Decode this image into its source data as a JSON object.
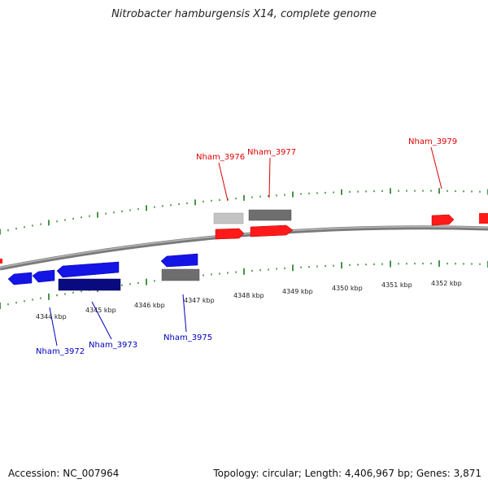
{
  "title": "Nitrobacter hamburgensis X14, complete genome",
  "footer": {
    "accession": "Accession: NC_007964",
    "summary": "Topology: circular; Length: 4,406,967 bp; Genes: 3,871"
  },
  "colors": {
    "backbone": "#8a8a8a",
    "tick": "#1a7a1a",
    "forward_cds": "#ff1a1a",
    "reverse_cds": "#1414e6",
    "dark_reverse": "#0a0a80",
    "other_feature_dark": "#6e6e6e",
    "other_feature_light": "#c4c4c4",
    "label_forward": "#e00000",
    "label_reverse": "#0000c0",
    "tick_label": "#222222"
  },
  "axis": {
    "unit": "kbp",
    "tick_labels": [
      "4344 kbp",
      "4345 kbp",
      "4346 kbp",
      "4347 kbp",
      "4348 kbp",
      "4349 kbp",
      "4350 kbp",
      "4351 kbp",
      "4352 kbp"
    ]
  },
  "gene_labels": {
    "forward": [
      "Nham_3976",
      "Nham_3977",
      "Nham_3979"
    ],
    "reverse": [
      "Nham_3972",
      "Nham_3973",
      "Nham_3975"
    ]
  }
}
